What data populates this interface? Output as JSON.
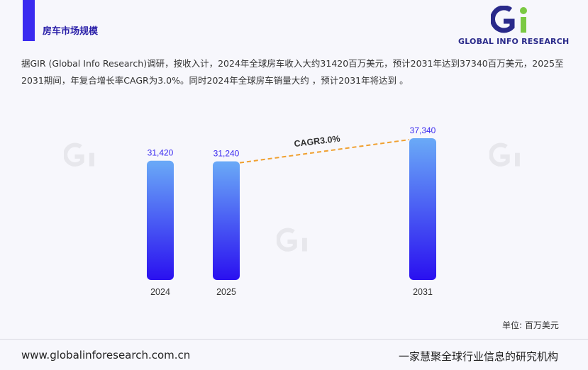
{
  "header": {
    "section_title": "房车市场规模",
    "logo_text": "GLOBAL INFO RESEARCH",
    "accent_color": "#3b2bf0"
  },
  "intro": {
    "text": "据GIR (Global Info Research)调研，按收入计，2024年全球房车收入大约31420百万美元，预计2031年达到37340百万美元，2025至2031期间，年复合增长率CAGR为3.0%。同时2024年全球房车销量大约 ，预计2031年将达到 。"
  },
  "chart_data": {
    "type": "bar",
    "categories": [
      "2024",
      "2025",
      "2031"
    ],
    "values": [
      31420,
      31240,
      37340
    ],
    "value_labels": [
      "31,420",
      "31,240",
      "37,340"
    ],
    "ylim": [
      0,
      37340
    ],
    "annotation": "CAGR3.0%",
    "unit": "单位: 百万美元",
    "bar_gradient": [
      "#6aaaf7",
      "#2a10f0"
    ],
    "value_label_color": "#3b2bf0",
    "annotation_line_color": "#f0a030",
    "grid": false
  },
  "footer": {
    "url": "www.globalinforesearch.com.cn",
    "slogan": "一家慧聚全球行业信息的研究机构"
  }
}
